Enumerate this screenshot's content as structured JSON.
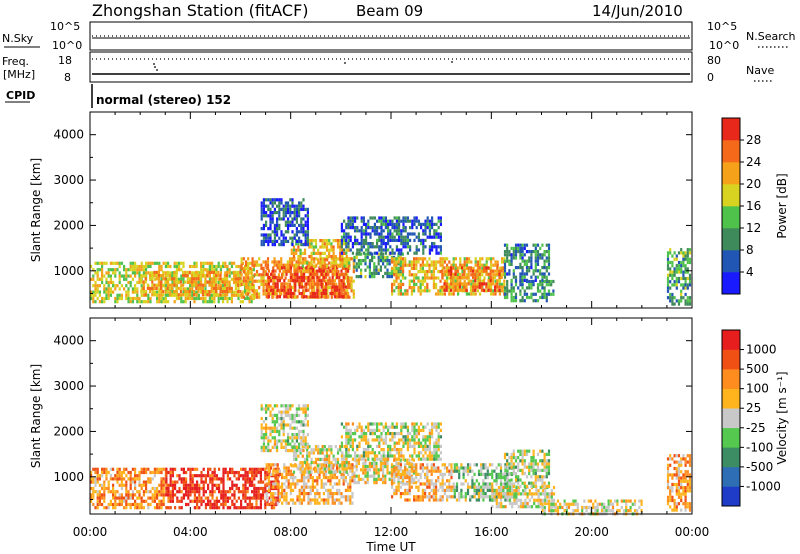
{
  "header": {
    "title": "Zhongshan Station (fitACF)",
    "beam": "Beam 09",
    "date": "14/Jun/2010"
  },
  "params": {
    "nsky_label": "N.Sky",
    "nsky_ticks": [
      "10^5",
      "10^0"
    ],
    "nsearch_label": "N.Search",
    "nsearch_ticks": [
      "10^5",
      "10^0"
    ],
    "freq_label_line1": "Freq.",
    "freq_label_line2": "[MHz]",
    "freq_ticks": [
      "18",
      "8"
    ],
    "nave_label": "Nave",
    "nave_ticks": [
      "80",
      "0"
    ],
    "cpid_label": "CPID",
    "cpid_value": "normal (stereo) 152"
  },
  "colors": {
    "power_scale": [
      "#1a1aff",
      "#2256b4",
      "#3f8a5a",
      "#4fc24b",
      "#d8d321",
      "#f5a21a",
      "#f56a1a",
      "#e8281a"
    ],
    "velocity_scale": [
      "#1e3cc8",
      "#2d6eb4",
      "#3c8c64",
      "#55c850",
      "#c8c8c8",
      "#ffb41e",
      "#ff8c1e",
      "#f05014",
      "#e61e1e"
    ]
  },
  "chart_data": [
    {
      "type": "heatmap",
      "title": "Power",
      "ylabel": "Slant Range [km]",
      "xlabel": "",
      "xlim": [
        "00:00",
        "00:00"
      ],
      "ylim": [
        180,
        4500
      ],
      "y_ticks": [
        "1000",
        "2000",
        "3000",
        "4000"
      ],
      "x_ticks": [
        "00:00",
        "04:00",
        "08:00",
        "12:00",
        "16:00",
        "20:00",
        "00:00"
      ],
      "colorbar": {
        "label": "Power [dB]",
        "tick_labels": [
          "28",
          "24",
          "20",
          "16",
          "12",
          "8",
          "4"
        ],
        "range": [
          0,
          32
        ]
      },
      "regions": [
        {
          "t": [
            0.0,
            6.5
          ],
          "r": [
            300,
            1200
          ],
          "v": 18
        },
        {
          "t": [
            2.0,
            6.0
          ],
          "r": [
            500,
            1000
          ],
          "v": 22
        },
        {
          "t": [
            6.0,
            10.5
          ],
          "r": [
            400,
            1300
          ],
          "v": 22
        },
        {
          "t": [
            7.0,
            10.3
          ],
          "r": [
            450,
            1100
          ],
          "v": 28
        },
        {
          "t": [
            8.0,
            10.3
          ],
          "r": [
            1100,
            1700
          ],
          "v": 20
        },
        {
          "t": [
            6.8,
            8.7
          ],
          "r": [
            1600,
            2600
          ],
          "v": 6
        },
        {
          "t": [
            10.5,
            12.5
          ],
          "r": [
            900,
            1400
          ],
          "v": 11
        },
        {
          "t": [
            10.0,
            14.0
          ],
          "r": [
            1400,
            2200
          ],
          "v": 7
        },
        {
          "t": [
            12.0,
            16.5
          ],
          "r": [
            500,
            1300
          ],
          "v": 20
        },
        {
          "t": [
            14.0,
            16.5
          ],
          "r": [
            600,
            1100
          ],
          "v": 25
        },
        {
          "t": [
            16.5,
            18.5
          ],
          "r": [
            350,
            800
          ],
          "v": 10
        },
        {
          "t": [
            16.5,
            18.3
          ],
          "r": [
            800,
            1600
          ],
          "v": 9
        },
        {
          "t": [
            23.0,
            23.9
          ],
          "r": [
            300,
            1500
          ],
          "v": 12
        }
      ]
    },
    {
      "type": "heatmap",
      "title": "Velocity",
      "ylabel": "Slant Range [km]",
      "xlabel": "Time UT",
      "xlim": [
        "00:00",
        "00:00"
      ],
      "ylim": [
        180,
        4500
      ],
      "y_ticks": [
        "1000",
        "2000",
        "3000",
        "4000"
      ],
      "x_ticks": [
        "00:00",
        "04:00",
        "08:00",
        "12:00",
        "16:00",
        "20:00",
        "00:00"
      ],
      "colorbar": {
        "label": "Velocity [m s⁻¹]",
        "tick_labels": [
          "1000",
          "500",
          "100",
          "25",
          "-25",
          "-100",
          "-500",
          "-1000"
        ],
        "range": [
          -1200,
          1200
        ]
      },
      "regions": [
        {
          "t": [
            0.0,
            3.0
          ],
          "r": [
            300,
            1200
          ],
          "v": 500
        },
        {
          "t": [
            3.0,
            7.5
          ],
          "r": [
            300,
            1200
          ],
          "v": 1000
        },
        {
          "t": [
            7.0,
            10.5
          ],
          "r": [
            400,
            1300
          ],
          "v": 300
        },
        {
          "t": [
            8.0,
            10.3
          ],
          "r": [
            1100,
            1700
          ],
          "v": 100
        },
        {
          "t": [
            6.8,
            8.7
          ],
          "r": [
            1600,
            2600
          ],
          "v": 0
        },
        {
          "t": [
            10.5,
            13.0
          ],
          "r": [
            900,
            1400
          ],
          "v": 100
        },
        {
          "t": [
            10.0,
            14.0
          ],
          "r": [
            1400,
            2200
          ],
          "v": 0
        },
        {
          "t": [
            12.0,
            14.5
          ],
          "r": [
            500,
            1300
          ],
          "v": 300
        },
        {
          "t": [
            14.5,
            17.0
          ],
          "r": [
            500,
            1300
          ],
          "v": -200
        },
        {
          "t": [
            16.0,
            18.5
          ],
          "r": [
            350,
            800
          ],
          "v": 100
        },
        {
          "t": [
            16.5,
            18.3
          ],
          "r": [
            800,
            1600
          ],
          "v": -50
        },
        {
          "t": [
            18.0,
            22.0
          ],
          "r": [
            200,
            500
          ],
          "v": 80
        },
        {
          "t": [
            23.0,
            23.9
          ],
          "r": [
            300,
            1500
          ],
          "v": 400
        }
      ]
    }
  ]
}
